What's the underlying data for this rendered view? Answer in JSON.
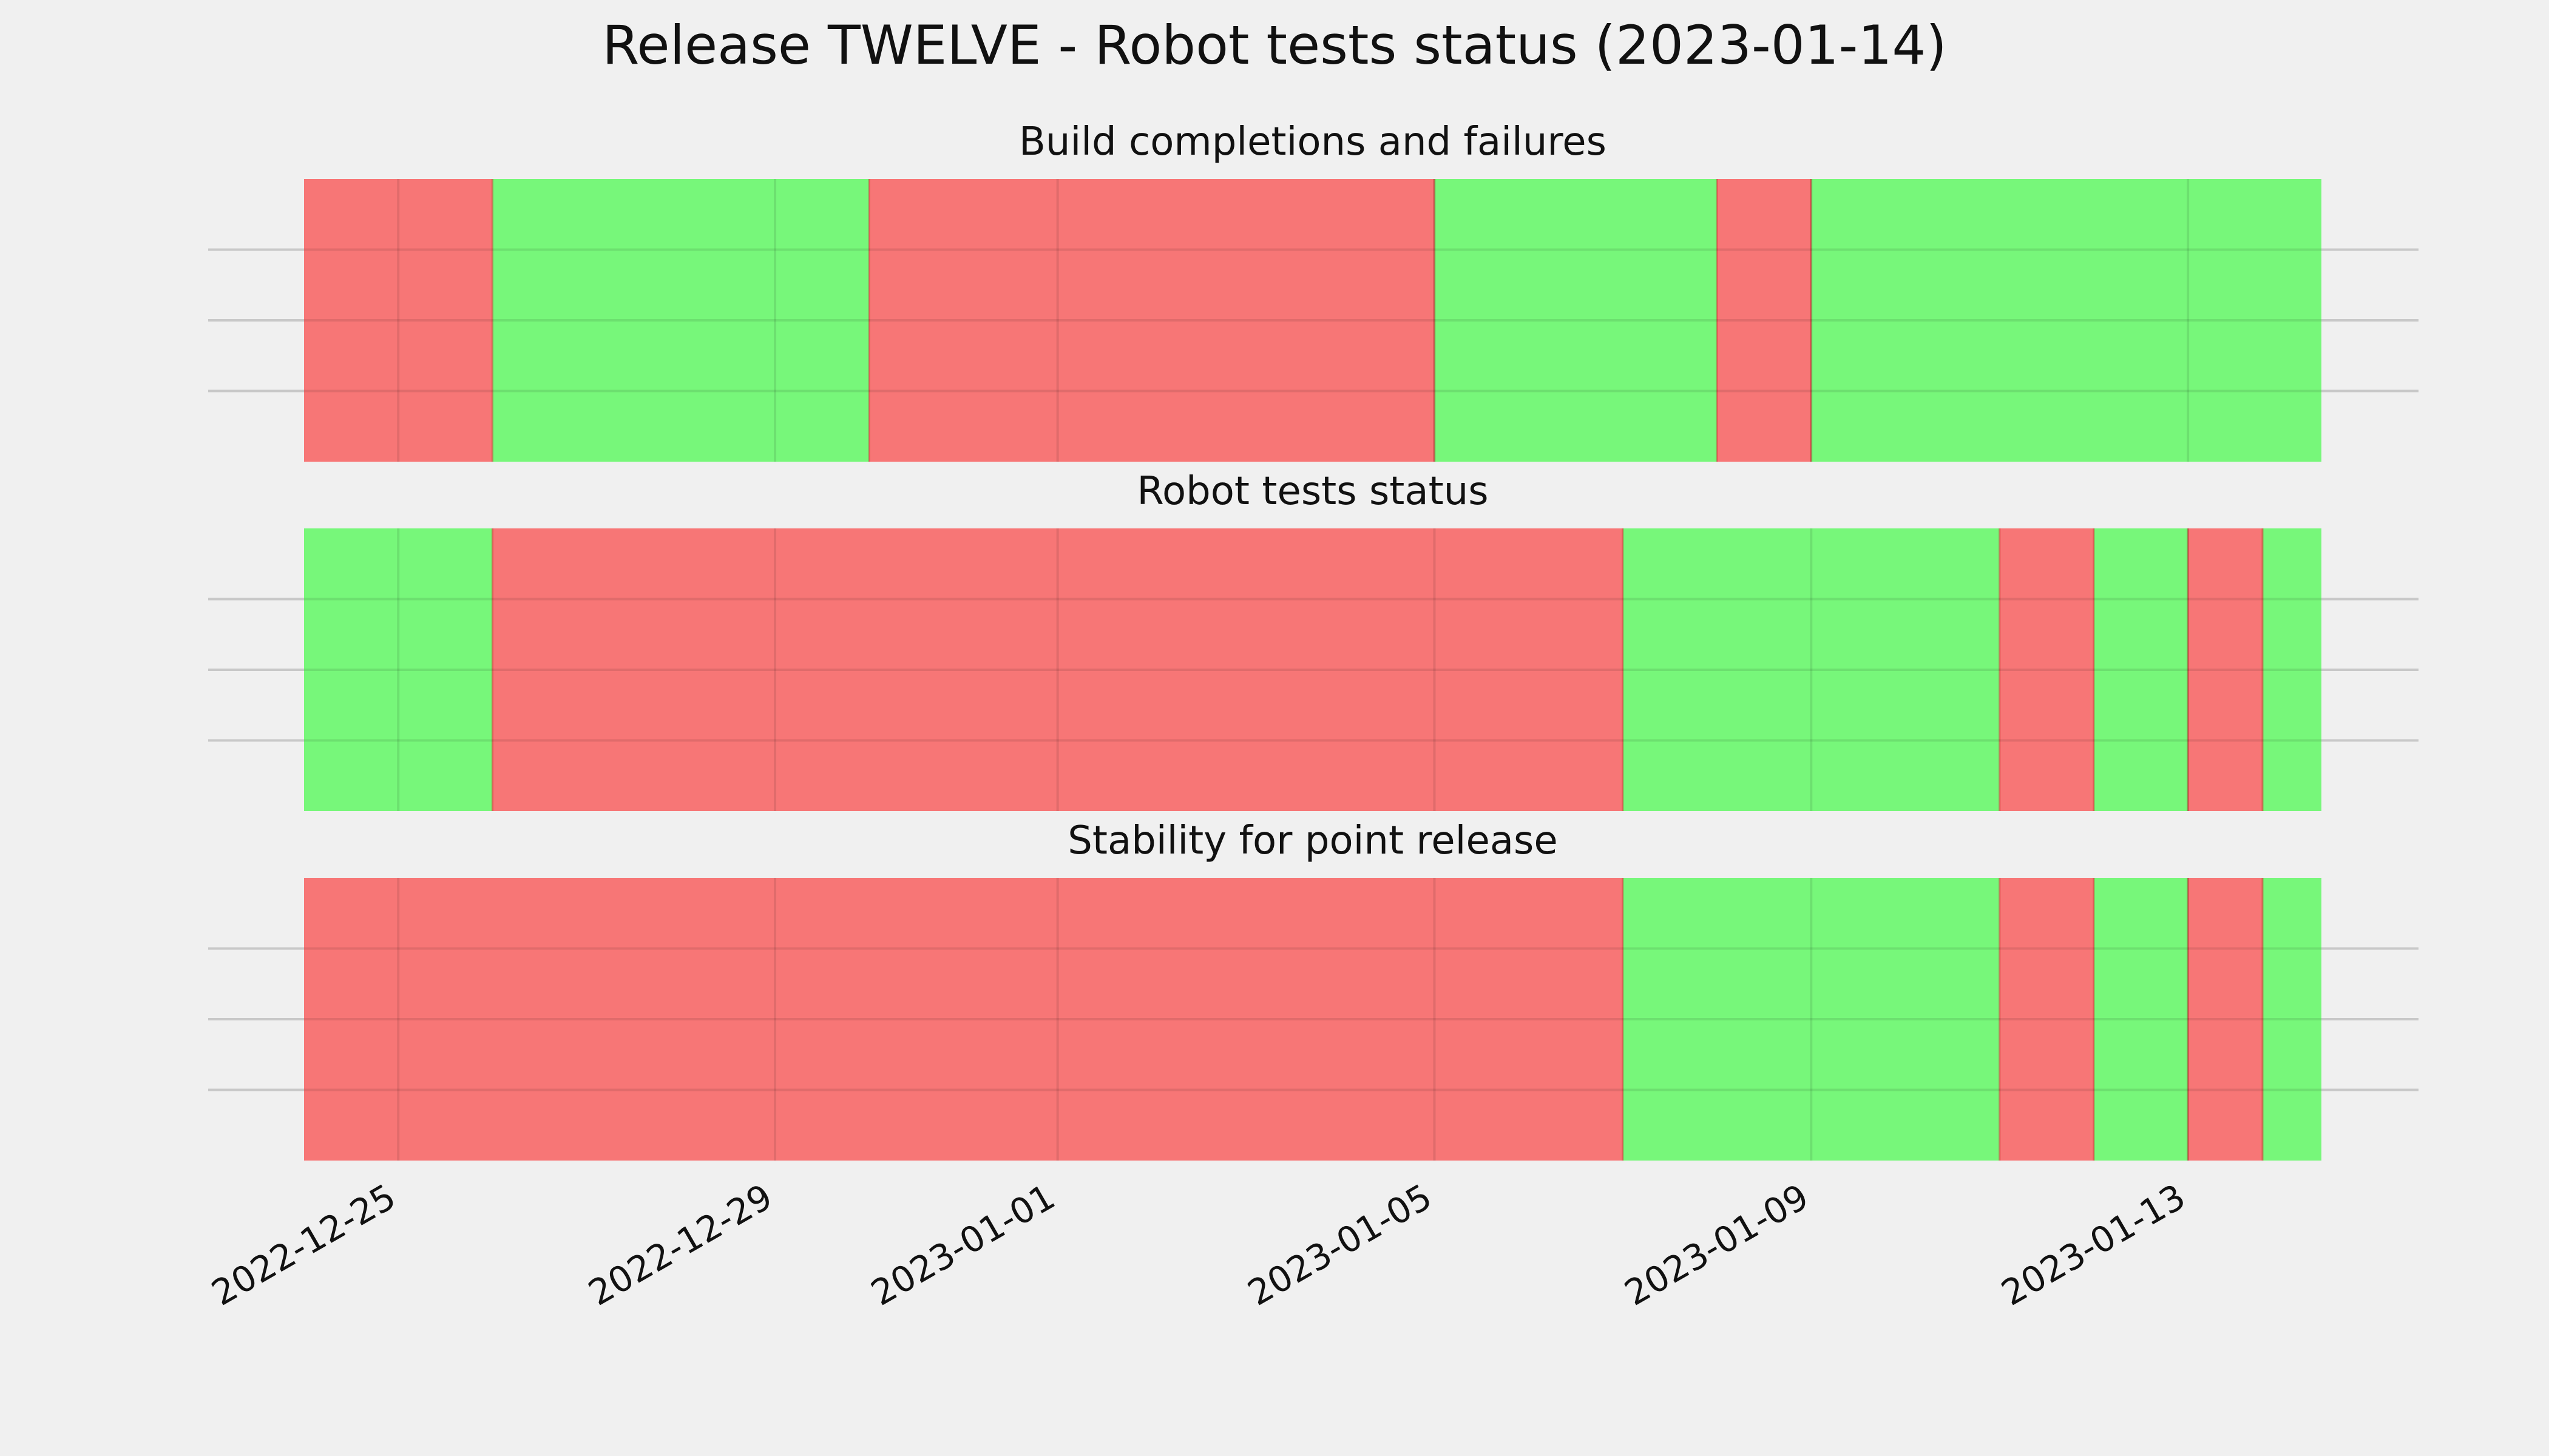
{
  "figure_title": "Release TWELVE - Robot tests status (2023-01-14)",
  "colors": {
    "pass": "#77f77a",
    "fail": "#f77676",
    "background": "#f0f0f0",
    "grid": "#c8c8c8"
  },
  "chart_data": [
    {
      "type": "timeline",
      "title": "Build completions and failures",
      "xlim": [
        "2022-12-24",
        "2023-01-14T10:00"
      ],
      "grid": true,
      "segments": [
        {
          "start": "2022-12-24",
          "end": "2022-12-26",
          "status": "fail"
        },
        {
          "start": "2022-12-26",
          "end": "2022-12-30",
          "status": "pass"
        },
        {
          "start": "2022-12-30",
          "end": "2023-01-05",
          "status": "fail"
        },
        {
          "start": "2023-01-05",
          "end": "2023-01-08",
          "status": "pass"
        },
        {
          "start": "2023-01-08",
          "end": "2023-01-09",
          "status": "fail"
        },
        {
          "start": "2023-01-09",
          "end": "2023-01-14T10:00",
          "status": "pass"
        }
      ]
    },
    {
      "type": "timeline",
      "title": "Robot tests status",
      "xlim": [
        "2022-12-24",
        "2023-01-14T10:00"
      ],
      "grid": true,
      "segments": [
        {
          "start": "2022-12-24",
          "end": "2022-12-26",
          "status": "pass"
        },
        {
          "start": "2022-12-26",
          "end": "2023-01-07",
          "status": "fail"
        },
        {
          "start": "2023-01-07",
          "end": "2023-01-11",
          "status": "pass"
        },
        {
          "start": "2023-01-11",
          "end": "2023-01-12",
          "status": "fail"
        },
        {
          "start": "2023-01-12",
          "end": "2023-01-13",
          "status": "pass"
        },
        {
          "start": "2023-01-13",
          "end": "2023-01-13T19:00",
          "status": "fail"
        },
        {
          "start": "2023-01-13T19:00",
          "end": "2023-01-14T10:00",
          "status": "pass"
        }
      ]
    },
    {
      "type": "timeline",
      "title": "Stability for point release",
      "xlim": [
        "2022-12-24",
        "2023-01-14T10:00"
      ],
      "grid": true,
      "segments": [
        {
          "start": "2022-12-24",
          "end": "2023-01-07",
          "status": "fail"
        },
        {
          "start": "2023-01-07",
          "end": "2023-01-11",
          "status": "pass"
        },
        {
          "start": "2023-01-11",
          "end": "2023-01-12",
          "status": "fail"
        },
        {
          "start": "2023-01-12",
          "end": "2023-01-13",
          "status": "pass"
        },
        {
          "start": "2023-01-13",
          "end": "2023-01-13T19:00",
          "status": "fail"
        },
        {
          "start": "2023-01-13T19:00",
          "end": "2023-01-14T10:00",
          "status": "pass"
        }
      ]
    }
  ],
  "x_ticks": [
    "2022-12-25",
    "2022-12-29",
    "2023-01-01",
    "2023-01-05",
    "2023-01-09",
    "2023-01-13"
  ]
}
